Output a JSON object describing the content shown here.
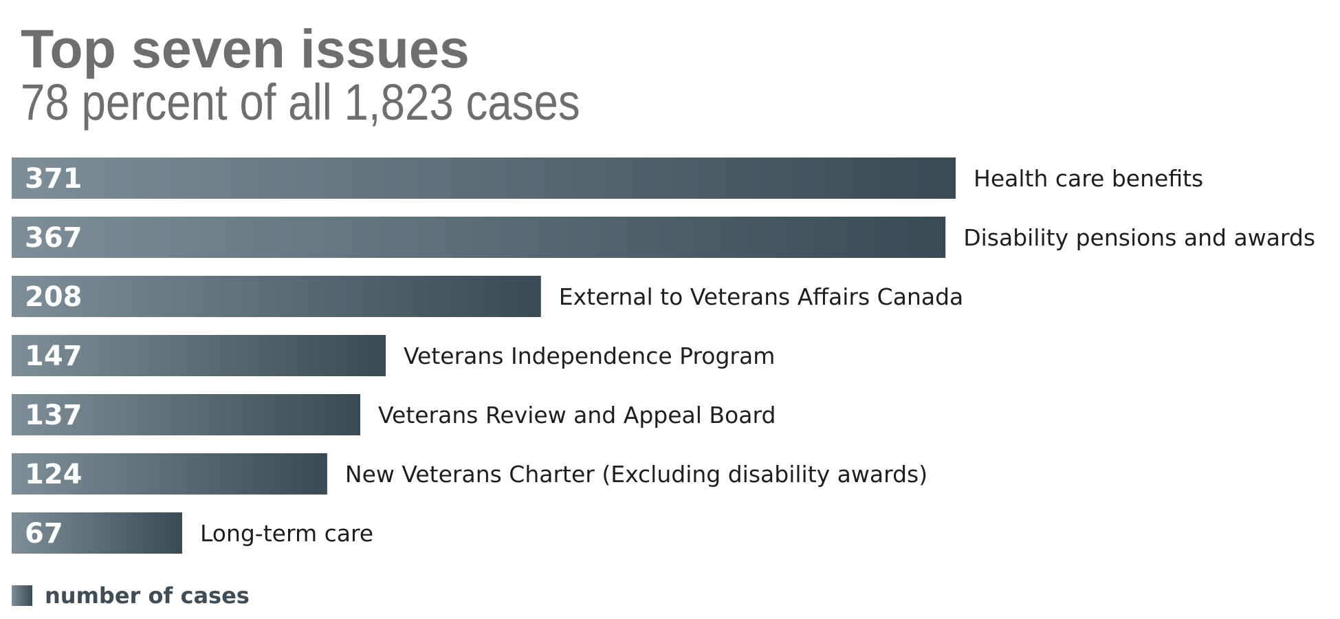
{
  "chart_data": {
    "type": "bar",
    "orientation": "horizontal",
    "title": "Top seven issues",
    "subtitle": "78 percent of all 1,823 cases",
    "categories": [
      "Health care benefits",
      "Disability pensions and awards",
      "External to Veterans Affairs Canada",
      "Veterans Independence Program",
      "Veterans Review and Appeal Board",
      "New Veterans Charter (Excluding disability awards)",
      "Long-term care"
    ],
    "series": [
      {
        "name": "number of cases",
        "values": [
          371,
          367,
          208,
          147,
          137,
          124,
          67
        ]
      }
    ],
    "xlim": [
      0,
      371
    ],
    "grid": false,
    "legend": "bottom-left",
    "data_labels": "inside-left",
    "colors": {
      "bar_light": "#7d8e99",
      "bar_dark": "#3a4a55",
      "value_label": "#ffffff",
      "category_label": "#1e1e1e",
      "title": "#6d6e70",
      "legend_text": "#3e4d58"
    }
  }
}
